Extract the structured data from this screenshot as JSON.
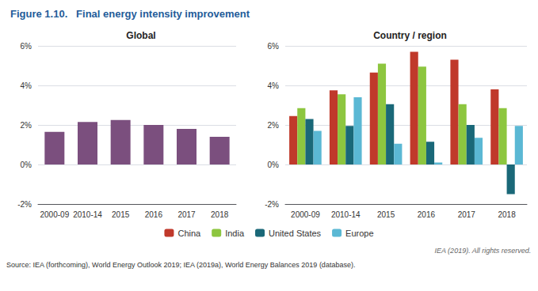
{
  "title": "Figure 1.10.   Final energy intensity improvement",
  "annotations": [
    "IEA (2019). All rights reserved.",
    "Source: IEA (forthcoming), World Energy Outlook 2019; IEA (2019a), World Energy Balances 2019 (database)."
  ],
  "chart_data": [
    {
      "type": "bar",
      "title": "Global",
      "categories": [
        "2000-09",
        "2010-14",
        "2015",
        "2016",
        "2017",
        "2018"
      ],
      "values": [
        1.65,
        2.15,
        2.25,
        2.0,
        1.8,
        1.4
      ],
      "color": "#7B4F7E",
      "ylim": [
        -2,
        6
      ],
      "yticks": [
        {
          "value": -2,
          "label": "-2%"
        },
        {
          "value": 0,
          "label": "0%"
        },
        {
          "value": 2,
          "label": "2%"
        },
        {
          "value": 4,
          "label": "4%"
        },
        {
          "value": 6,
          "label": "6%"
        }
      ],
      "grid": true
    },
    {
      "type": "bar",
      "title": "Country / region",
      "categories": [
        "2000-09",
        "2010-14",
        "2015",
        "2016",
        "2017",
        "2018"
      ],
      "series": [
        {
          "name": "China",
          "color": "#C0392B",
          "values": [
            2.45,
            3.75,
            4.65,
            5.7,
            5.3,
            3.8
          ]
        },
        {
          "name": "India",
          "color": "#8DC63F",
          "values": [
            2.85,
            3.55,
            5.1,
            4.95,
            3.05,
            2.85
          ]
        },
        {
          "name": "United States",
          "color": "#1A6878",
          "values": [
            2.3,
            1.95,
            3.05,
            1.15,
            2.0,
            -1.5
          ]
        },
        {
          "name": "Europe",
          "color": "#5BB8D4",
          "values": [
            1.7,
            3.4,
            1.05,
            0.1,
            1.35,
            1.95
          ]
        }
      ],
      "ylim": [
        -2,
        6
      ],
      "yticks": [
        {
          "value": -2,
          "label": "-2%"
        },
        {
          "value": 0,
          "label": "0%"
        },
        {
          "value": 2,
          "label": "2%"
        },
        {
          "value": 4,
          "label": "4%"
        },
        {
          "value": 6,
          "label": "6%"
        }
      ],
      "grid": true,
      "legend": "bottom"
    }
  ]
}
